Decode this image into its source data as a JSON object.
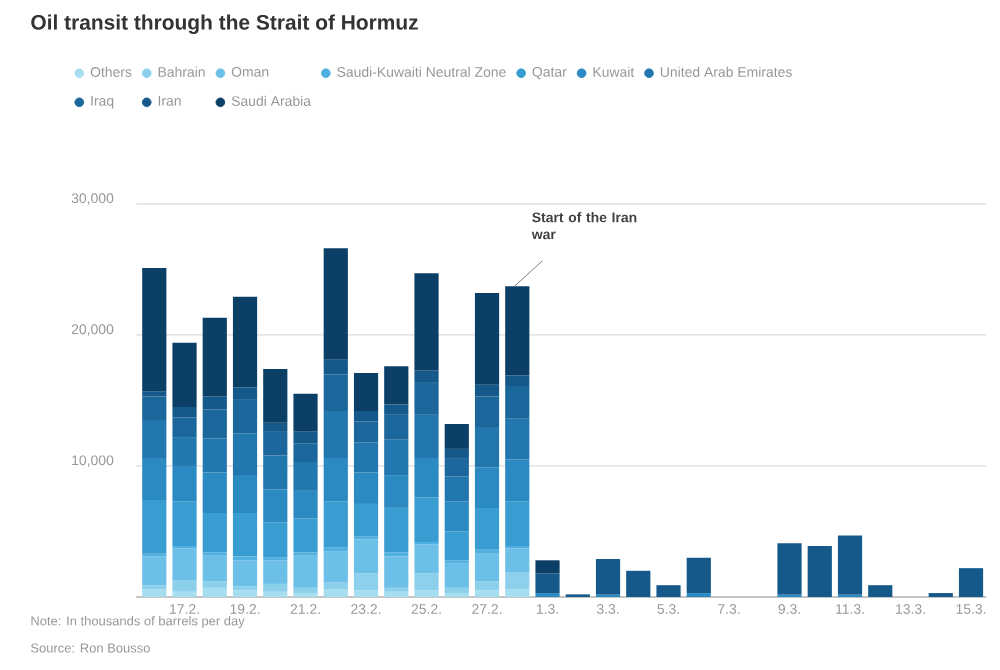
{
  "chart_data": {
    "type": "bar",
    "title": "Oil transit through the Strait of Hormuz",
    "categories": [
      null,
      "17.2.",
      null,
      "19.2.",
      null,
      "21.2.",
      null,
      "23.2.",
      null,
      "25.2.",
      null,
      "27.2.",
      null,
      "1.3.",
      null,
      "3.3.",
      null,
      "5.3.",
      null,
      "7.3.",
      null,
      "9.3.",
      null,
      "11.3.",
      null,
      "13.3.",
      null,
      "15.3."
    ],
    "stacked": true,
    "series": [
      {
        "name": "Others",
        "color": "#a6def0",
        "values": [
          600,
          400,
          700,
          500,
          400,
          300,
          600,
          500,
          400,
          500,
          300,
          500,
          600,
          null,
          null,
          null,
          null,
          null,
          null,
          null,
          null,
          null,
          null,
          null,
          null,
          null,
          null,
          null
        ]
      },
      {
        "name": "Bahrain",
        "color": "#8cd0ec",
        "values": [
          300,
          900,
          500,
          300,
          600,
          400,
          500,
          1300,
          300,
          1300,
          400,
          700,
          1300,
          null,
          null,
          null,
          null,
          null,
          null,
          null,
          null,
          null,
          null,
          null,
          null,
          null,
          null,
          null
        ]
      },
      {
        "name": "Oman",
        "color": "#6cbfe6",
        "values": [
          2200,
          2400,
          2000,
          2000,
          1800,
          2500,
          2400,
          2600,
          2400,
          2200,
          1900,
          2100,
          1800,
          null,
          null,
          null,
          null,
          null,
          null,
          null,
          null,
          null,
          null,
          null,
          null,
          null,
          null,
          null
        ]
      },
      {
        "name": "Saudi-Kuwaiti Neutral Zone",
        "color": "#50b0e0",
        "values": [
          200,
          200,
          200,
          300,
          200,
          200,
          300,
          200,
          300,
          200,
          200,
          300,
          200,
          null,
          null,
          null,
          null,
          null,
          null,
          null,
          null,
          null,
          null,
          null,
          null,
          null,
          null,
          null
        ]
      },
      {
        "name": "Qatar",
        "color": "#3a9dd2",
        "values": [
          4100,
          3400,
          3000,
          3300,
          2700,
          2600,
          3500,
          2500,
          3400,
          3400,
          2200,
          3200,
          3400,
          null,
          null,
          null,
          null,
          null,
          null,
          null,
          null,
          null,
          null,
          null,
          null,
          null,
          null,
          null
        ]
      },
      {
        "name": "Kuwait",
        "color": "#2c8ac2",
        "values": [
          3200,
          2700,
          3100,
          2900,
          2500,
          2100,
          3300,
          2400,
          2500,
          3000,
          2300,
          3100,
          3200,
          300,
          null,
          200,
          null,
          null,
          300,
          null,
          null,
          200,
          null,
          200,
          null,
          null,
          null,
          null
        ]
      },
      {
        "name": "United Arab Emirates",
        "color": "#2277ae",
        "values": [
          2900,
          2200,
          2600,
          3200,
          2600,
          2200,
          3600,
          2300,
          2700,
          3300,
          1900,
          3000,
          3100,
          null,
          null,
          null,
          null,
          null,
          null,
          null,
          null,
          null,
          null,
          null,
          null,
          null,
          null,
          null
        ]
      },
      {
        "name": "Iraq",
        "color": "#1b679c",
        "values": [
          1800,
          1500,
          2200,
          2600,
          1800,
          1400,
          2800,
          1600,
          1900,
          2500,
          1400,
          2400,
          2500,
          null,
          null,
          null,
          null,
          null,
          null,
          null,
          null,
          null,
          null,
          null,
          null,
          null,
          null,
          null
        ]
      },
      {
        "name": "Iran",
        "color": "#14598a",
        "values": [
          400,
          800,
          1000,
          900,
          700,
          900,
          1100,
          800,
          800,
          900,
          700,
          900,
          800,
          1500,
          200,
          2700,
          2000,
          900,
          2700,
          null,
          null,
          3900,
          3900,
          4500,
          900,
          null,
          300,
          2200
        ]
      },
      {
        "name": "Saudi Arabia",
        "color": "#0c3f66",
        "values": [
          9400,
          4900,
          6000,
          6900,
          4100,
          2900,
          8500,
          2900,
          2900,
          7400,
          1900,
          7000,
          6800,
          1000,
          null,
          null,
          null,
          null,
          null,
          null,
          null,
          null,
          null,
          null,
          null,
          null,
          null,
          null
        ]
      }
    ],
    "ylim": [
      0,
      30000
    ],
    "yticks": [
      {
        "value": 10000,
        "label": "10,000"
      },
      {
        "value": 20000,
        "label": "20,000"
      },
      {
        "value": 30000,
        "label": "30,000"
      }
    ],
    "grid": "y",
    "legend": "top",
    "annotations": [
      "Start of the Iran war",
      "Note: In thousands of barrels per day",
      "Source: Ron Bousso"
    ]
  }
}
